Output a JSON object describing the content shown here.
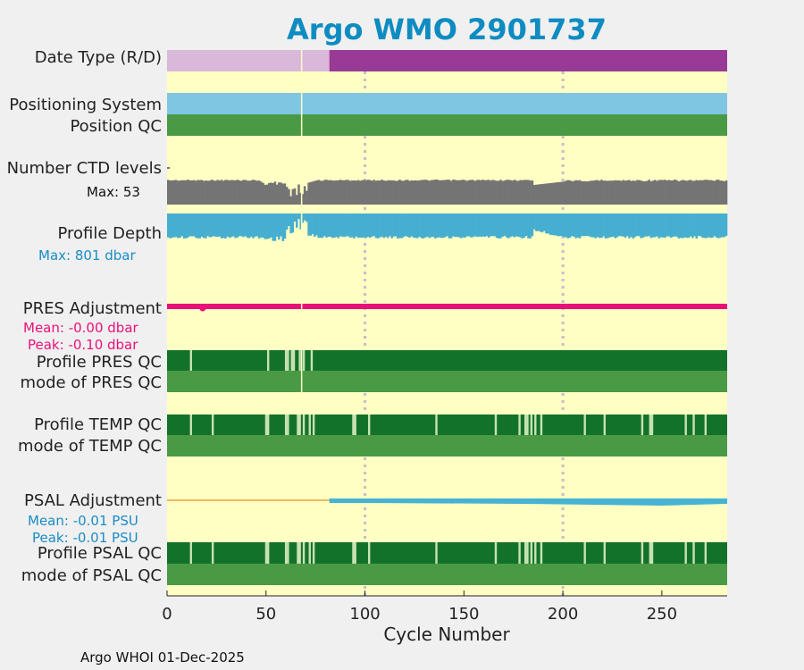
{
  "chart_data": {
    "type": "timeline",
    "title": "Argo WMO 2901737",
    "xlabel": "Cycle Number",
    "xlim": [
      0,
      283
    ],
    "xticks": [
      0,
      50,
      100,
      150,
      200,
      250
    ],
    "gridlines_x": [
      100,
      200
    ],
    "footer": "Argo WHOI 01-Dec-2025",
    "rows": {
      "date_type": {
        "label": "Date Type (R/D)",
        "segments": [
          {
            "from": 0,
            "to": 82,
            "mode": "R"
          },
          {
            "from": 82,
            "to": 283,
            "mode": "D"
          }
        ]
      },
      "positioning": {
        "label": "Positioning System",
        "value": "continuous"
      },
      "position_qc": {
        "label": "Position QC",
        "value": "good"
      },
      "ctd_levels": {
        "label": "Number CTD levels",
        "max_label": "Max: 53",
        "max": 53
      },
      "profile_depth": {
        "label": "Profile Depth",
        "max_label": "Max:  801 dbar",
        "max": 801
      },
      "pres_adj": {
        "label": "PRES Adjustment",
        "mean_label": "Mean: -0.00 dbar",
        "peak_label": "Peak: -0.10 dbar",
        "outlier_cycle": 18
      },
      "pres_qc": {
        "label": "Profile PRES QC",
        "mode_label": "mode of PRES QC",
        "flagged_cycles": [
          12,
          51,
          60,
          61,
          63,
          64,
          67,
          69,
          73
        ]
      },
      "temp_qc": {
        "label": "Profile TEMP QC",
        "mode_label": "mode of TEMP QC",
        "flagged_cycles": [
          12,
          23,
          50,
          51,
          60,
          61,
          66,
          67,
          69,
          72,
          74,
          94,
          95,
          102,
          136,
          166,
          178,
          181,
          182,
          184,
          186,
          189,
          211,
          221,
          240,
          244,
          245,
          262,
          266,
          272
        ]
      },
      "psal_adj": {
        "label": "PSAL Adjustment",
        "mean_label": "Mean: -0.01 PSU",
        "peak_label": "Peak: -0.01 PSU",
        "adjusted_from": 82
      },
      "psal_qc": {
        "label": "Profile PSAL QC",
        "mode_label": "mode of PSAL QC",
        "flagged_cycles": [
          12,
          23,
          50,
          51,
          60,
          61,
          66,
          67,
          69,
          72,
          74,
          94,
          95,
          102,
          136,
          166,
          178,
          181,
          182,
          184,
          186,
          189,
          211,
          221,
          240,
          244,
          245,
          262,
          266,
          272
        ]
      }
    },
    "colors": {
      "title": "#0e8cc2",
      "bg": "#ffffc4",
      "date_r": "#d9b8da",
      "date_d": "#983a96",
      "positioning": "#7fc6e2",
      "qc_mode": "#4a9a45",
      "qc_profile": "#137229",
      "qc_flag": "#c8e2b2",
      "ctd": "#747474",
      "depth": "#46aed0",
      "pres": "#e8117a",
      "psal_line": "#f0a030",
      "psal_bar": "#46b2d4",
      "blue_text": "#1a8cc6",
      "grid": "#c0c0c8"
    }
  }
}
